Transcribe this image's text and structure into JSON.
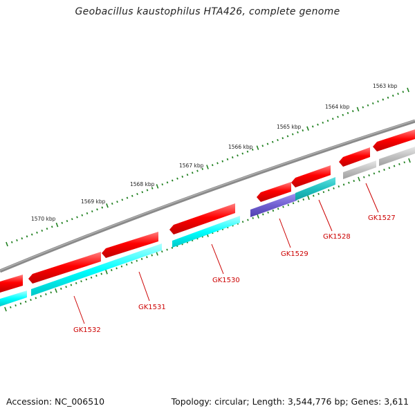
{
  "header": {
    "title": "Geobacillus kaustophilus HTA426, complete genome"
  },
  "footer": {
    "accession": "Accession: NC_006510",
    "topology": "Topology: circular; Length: 3,544,776 bp; Genes: 3,611"
  },
  "scale": {
    "labels": [
      "1563 kbp",
      "1564 kbp",
      "1565 kbp",
      "1566 kbp",
      "1567 kbp",
      "1568 kbp",
      "1569 kbp",
      "1570 kbp"
    ]
  },
  "genes": [
    {
      "id": "GK1527",
      "label": "GK1527"
    },
    {
      "id": "GK1528",
      "label": "GK1528"
    },
    {
      "id": "GK1529",
      "label": "GK1529"
    },
    {
      "id": "GK1530",
      "label": "GK1530"
    },
    {
      "id": "GK1531",
      "label": "GK1531"
    },
    {
      "id": "GK1532",
      "label": "GK1532"
    }
  ],
  "colors": {
    "backbone": "#7a7a7a",
    "forward_strand": "#ff0000",
    "cyan_category": "#00ffff",
    "teal_category": "#20c8c8",
    "purple_category": "#7060d0",
    "gray_category": "#c0c0c0",
    "tick": "#208020",
    "gene_label": "#cc0000"
  }
}
